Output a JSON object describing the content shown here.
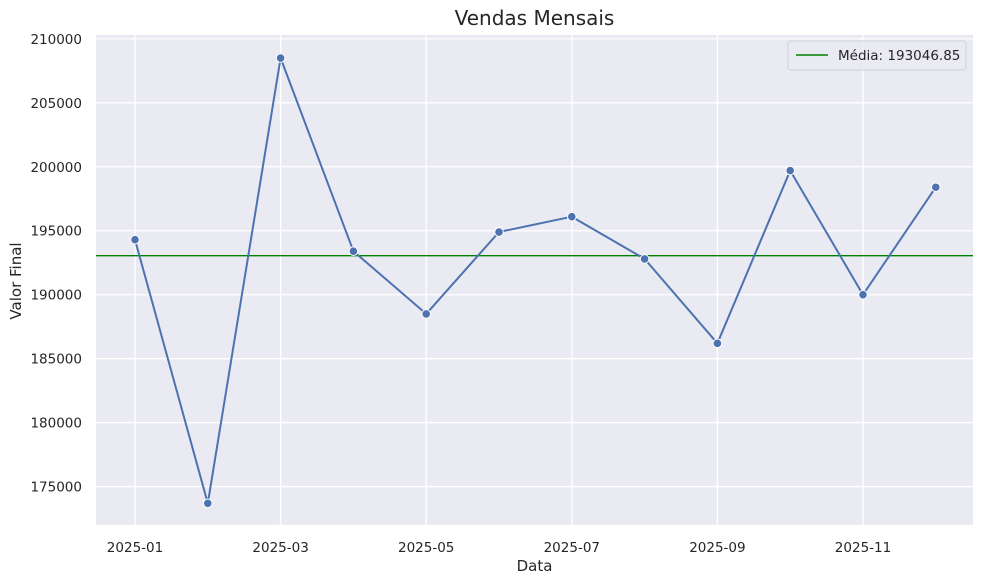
{
  "chart_data": {
    "type": "line",
    "title": "Vendas Mensais",
    "xlabel": "Data",
    "ylabel": "Valor Final",
    "x": [
      "2025-01",
      "2025-02",
      "2025-03",
      "2025-04",
      "2025-05",
      "2025-06",
      "2025-07",
      "2025-08",
      "2025-09",
      "2025-10",
      "2025-11",
      "2025-12"
    ],
    "x_tick_labels": [
      "2025-01",
      "2025-03",
      "2025-05",
      "2025-07",
      "2025-09",
      "2025-11"
    ],
    "y_tick_labels": [
      "175000",
      "180000",
      "185000",
      "190000",
      "195000",
      "200000",
      "205000",
      "210000"
    ],
    "ylim": [
      172000,
      210300
    ],
    "series": [
      {
        "values": [
          194300,
          173700,
          208500,
          193400,
          188500,
          194900,
          196100,
          192800,
          186200,
          199700,
          190000,
          198400
        ],
        "color": "#4c72b0",
        "marker": "circle"
      }
    ],
    "reference_line": {
      "label": "Média: 193046.85",
      "value": 193046.85,
      "color": "#008000"
    },
    "legend_position": "top-right",
    "grid": true,
    "background": "#eaeaf2"
  }
}
